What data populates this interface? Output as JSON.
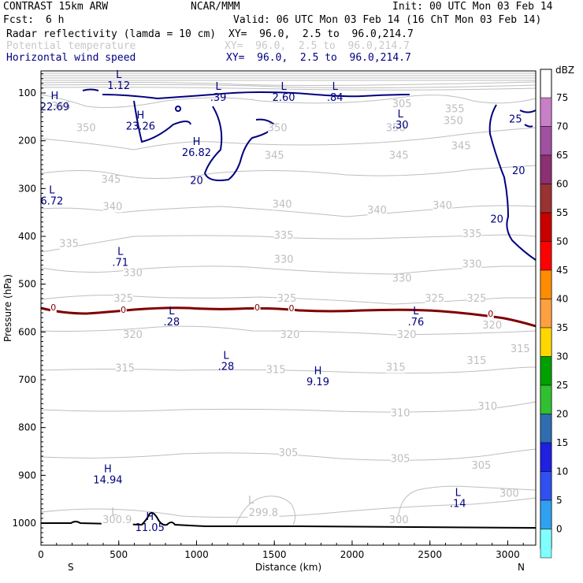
{
  "header": {
    "left1": "CONTRAST 15km ARW",
    "center1": "NCAR/MMM",
    "right1": "Init: 00 UTC Mon 03 Feb 14",
    "fcst_label": "Fcst:",
    "fcst_value": "6 h",
    "valid": "Valid: 06 UTC Mon 03 Feb 14 (16 ChT Mon 03 Feb 14)",
    "field1": "Radar reflectivity (lamda = 10 cm)",
    "field1_xy": "XY=  96.0,  2.5 to  96.0,214.7",
    "field2": "Potential temperature",
    "field2_xy": "XY=  96.0,  2.5 to  96.0,214.7",
    "field3": "Horizontal wind speed",
    "field3_xy": "XY=  96.0,  2.5 to  96.0,214.7"
  },
  "colors": {
    "theta": "#bebebe",
    "wind": "#000080",
    "zero_line": "#800000",
    "terrain": "#000000"
  },
  "chart_data": {
    "type": "cross-section",
    "xlabel": "Distance (km)",
    "ylabel": "Pressure (hPa)",
    "xlim": [
      0,
      3180
    ],
    "ylim_hpa": [
      1050,
      50
    ],
    "x_ticks": [
      "0",
      "500",
      "1000",
      "1500",
      "2000",
      "2500",
      "3000"
    ],
    "y_ticks": [
      "100",
      "200",
      "300",
      "400",
      "500",
      "600",
      "700",
      "800",
      "900",
      "1000"
    ],
    "end_labels": {
      "left": "S",
      "right": "N"
    },
    "colorbar": {
      "unit": "dBZ",
      "levels": [
        "75",
        "70",
        "65",
        "60",
        "55",
        "50",
        "45",
        "40",
        "35",
        "30",
        "25",
        "20",
        "15",
        "10",
        "5",
        "0"
      ],
      "colors": [
        "#c77fc7",
        "#a050a0",
        "#8b3070",
        "#9a3232",
        "#c80000",
        "#ff0000",
        "#ff8c00",
        "#ffa040",
        "#ffd700",
        "#00a000",
        "#30c030",
        "#2e6eb0",
        "#2020e0",
        "#3050f0",
        "#30a0f0",
        "#80ffff"
      ]
    },
    "theta_labels": [
      {
        "t": "355",
        "x": 130,
        "p": 135
      },
      {
        "t": "350",
        "x": 290,
        "p": 180
      },
      {
        "t": "350",
        "x": 1520,
        "p": 180
      },
      {
        "t": "350",
        "x": 2280,
        "p": 180
      },
      {
        "t": "350",
        "x": 2650,
        "p": 165
      },
      {
        "t": "355",
        "x": 2660,
        "p": 140
      },
      {
        "t": "305",
        "x": 2320,
        "p": 130
      },
      {
        "t": "345",
        "x": 450,
        "p": 288
      },
      {
        "t": "345",
        "x": 1500,
        "p": 238
      },
      {
        "t": "345",
        "x": 2300,
        "p": 238
      },
      {
        "t": "345",
        "x": 2700,
        "p": 218
      },
      {
        "t": "340",
        "x": 460,
        "p": 345
      },
      {
        "t": "340",
        "x": 1550,
        "p": 340
      },
      {
        "t": "340",
        "x": 2160,
        "p": 352
      },
      {
        "t": "340",
        "x": 2580,
        "p": 342
      },
      {
        "t": "335",
        "x": 180,
        "p": 422
      },
      {
        "t": "335",
        "x": 1560,
        "p": 405
      },
      {
        "t": "335",
        "x": 2770,
        "p": 402
      },
      {
        "t": "330",
        "x": 590,
        "p": 483
      },
      {
        "t": "330",
        "x": 1560,
        "p": 455
      },
      {
        "t": "330",
        "x": 2320,
        "p": 495
      },
      {
        "t": "330",
        "x": 2770,
        "p": 465
      },
      {
        "t": "325",
        "x": 530,
        "p": 537
      },
      {
        "t": "325",
        "x": 1580,
        "p": 537
      },
      {
        "t": "325",
        "x": 2530,
        "p": 537
      },
      {
        "t": "325",
        "x": 2800,
        "p": 537
      },
      {
        "t": "320",
        "x": 590,
        "p": 613
      },
      {
        "t": "320",
        "x": 1600,
        "p": 613
      },
      {
        "t": "320",
        "x": 2350,
        "p": 613
      },
      {
        "t": "320",
        "x": 2900,
        "p": 593
      },
      {
        "t": "315",
        "x": 540,
        "p": 683
      },
      {
        "t": "315",
        "x": 1510,
        "p": 686
      },
      {
        "t": "315",
        "x": 2280,
        "p": 681
      },
      {
        "t": "315",
        "x": 2800,
        "p": 667
      },
      {
        "t": "315",
        "x": 3080,
        "p": 642
      },
      {
        "t": "310",
        "x": 2310,
        "p": 777
      },
      {
        "t": "310",
        "x": 2870,
        "p": 763
      },
      {
        "t": "305",
        "x": 1590,
        "p": 860
      },
      {
        "t": "305",
        "x": 2310,
        "p": 872
      },
      {
        "t": "305",
        "x": 2830,
        "p": 886
      },
      {
        "t": "300",
        "x": 3010,
        "p": 945
      },
      {
        "t": "300.9",
        "x": 490,
        "p": 1000
      },
      {
        "t": "299.8",
        "x": 1430,
        "p": 985
      },
      {
        "t": "300",
        "x": 2300,
        "p": 1000
      }
    ],
    "wind_contour_labels": [
      {
        "t": "20",
        "x": 1000,
        "p": 290
      },
      {
        "t": "20",
        "x": 3070,
        "p": 270
      },
      {
        "t": "20",
        "x": 2930,
        "p": 371
      },
      {
        "t": "25",
        "x": 3050,
        "p": 162
      }
    ],
    "zero_labels": [
      {
        "t": "0",
        "x": 80,
        "p": 555
      },
      {
        "t": "0",
        "x": 530,
        "p": 560
      },
      {
        "t": "0",
        "x": 1390,
        "p": 555
      },
      {
        "t": "0",
        "x": 1610,
        "p": 557
      },
      {
        "t": "0",
        "x": 2890,
        "p": 568
      }
    ],
    "extrema": [
      {
        "k": "L",
        "v": "1.12",
        "x": 500,
        "p": 75,
        "c": "nav"
      },
      {
        "k": "H",
        "v": "22.69",
        "x": 88,
        "p": 120,
        "c": "nav"
      },
      {
        "k": "H",
        "v": "23.26",
        "x": 640,
        "p": 160,
        "c": "nav"
      },
      {
        "k": "L",
        "v": ".39",
        "x": 1140,
        "p": 100,
        "c": "nav"
      },
      {
        "k": "L",
        "v": "2.60",
        "x": 1560,
        "p": 100,
        "c": "nav"
      },
      {
        "k": "L",
        "v": ".84",
        "x": 1890,
        "p": 100,
        "c": "nav"
      },
      {
        "k": "L",
        "v": ".30",
        "x": 2310,
        "p": 158,
        "c": "nav"
      },
      {
        "k": "H",
        "v": "26.82",
        "x": 1000,
        "p": 215,
        "c": "nav"
      },
      {
        "k": "L",
        "v": "6.72",
        "x": 70,
        "p": 317,
        "c": "nav"
      },
      {
        "k": "L",
        "v": ".71",
        "x": 510,
        "p": 445,
        "c": "nav"
      },
      {
        "k": "L",
        "v": ".28",
        "x": 840,
        "p": 570,
        "c": "nav"
      },
      {
        "k": "L",
        "v": ".76",
        "x": 2410,
        "p": 570,
        "c": "nav"
      },
      {
        "k": "L",
        "v": ".28",
        "x": 1190,
        "p": 663,
        "c": "nav"
      },
      {
        "k": "H",
        "v": "9.19",
        "x": 1780,
        "p": 695,
        "c": "nav"
      },
      {
        "k": "H",
        "v": "14.94",
        "x": 430,
        "p": 900,
        "c": "nav"
      },
      {
        "k": "L",
        "v": ".14",
        "x": 2680,
        "p": 950,
        "c": "nav"
      },
      {
        "k": "H",
        "v": "11.05",
        "x": 700,
        "p": 1000,
        "c": "nav"
      },
      {
        "k": "L",
        "v": "",
        "x": 470,
        "p": 990,
        "c": "gry"
      },
      {
        "k": "L",
        "v": "",
        "x": 1350,
        "p": 965,
        "c": "gry"
      }
    ]
  }
}
